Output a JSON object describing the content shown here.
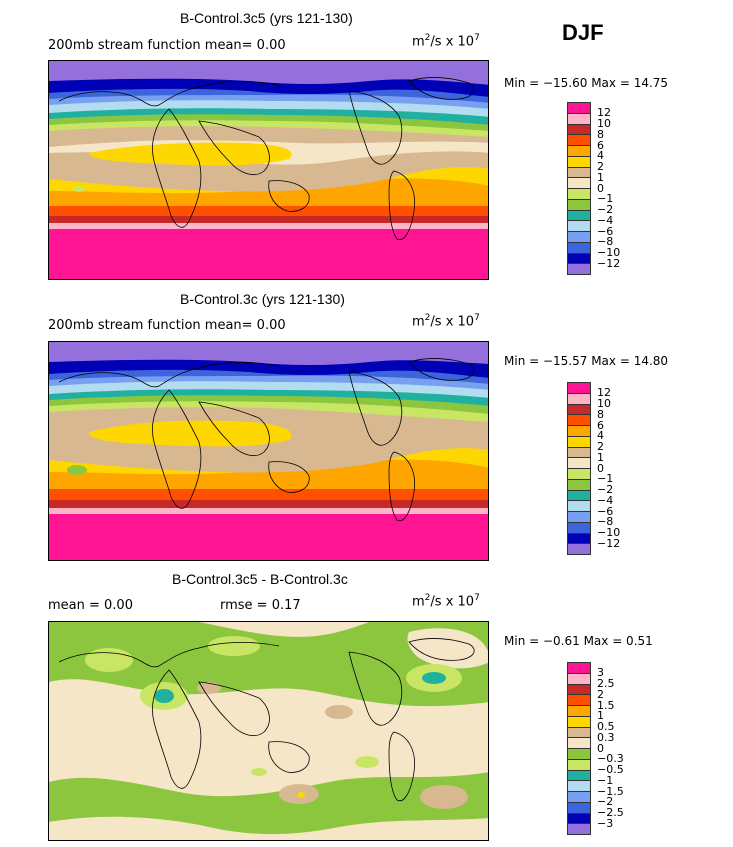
{
  "season": "DJF",
  "colors": {
    "purple": "#9370DB",
    "navy": "#0000B4",
    "blue": "#3C64DC",
    "sky": "#78A0F0",
    "lightblue": "#B4DCF0",
    "teal": "#20B0A0",
    "green": "#8CC63E",
    "lightgreen": "#C8E664",
    "tan": "#D8B890",
    "cream": "#F5E6C8",
    "yellow": "#FFD700",
    "orange": "#FFA500",
    "red": "#FF5000",
    "darkred": "#C82828",
    "pink": "#FFB4C8",
    "magenta": "#FF1493"
  },
  "panels": [
    {
      "title": "B-Control.3c5 (yrs 121-130)",
      "left_label": "200mb  stream  function    mean=     0.00",
      "units": "m",
      "units_sup": "2",
      "units_tail": "/s x 10",
      "units_exp": "7",
      "minmax": "Min = −15.60  Max =   14.75",
      "levels": [
        "12",
        "10",
        "8",
        "6",
        "4",
        "2",
        "1",
        "0",
        "−1",
        "−2",
        "−4",
        "−6",
        "−8",
        "−10",
        "−12"
      ],
      "colorbar": [
        "magenta",
        "pink",
        "darkred",
        "red",
        "orange",
        "yellow",
        "tan",
        "cream",
        "lightgreen",
        "green",
        "teal",
        "lightblue",
        "sky",
        "blue",
        "navy",
        "purple"
      ]
    },
    {
      "title": "B-Control.3c (yrs 121-130)",
      "left_label": "200mb  stream  function    mean=     0.00",
      "units": "m",
      "units_sup": "2",
      "units_tail": "/s x 10",
      "units_exp": "7",
      "minmax": "Min = −15.57  Max =   14.80",
      "levels": [
        "12",
        "10",
        "8",
        "6",
        "4",
        "2",
        "1",
        "0",
        "−1",
        "−2",
        "−4",
        "−6",
        "−8",
        "−10",
        "−12"
      ],
      "colorbar": [
        "magenta",
        "pink",
        "darkred",
        "red",
        "orange",
        "yellow",
        "tan",
        "cream",
        "lightgreen",
        "green",
        "teal",
        "lightblue",
        "sky",
        "blue",
        "navy",
        "purple"
      ]
    },
    {
      "title": "B-Control.3c5 - B-Control.3c",
      "left_label": "mean =     0.00",
      "mid_label": "rmse =     0.17",
      "units": "m",
      "units_sup": "2",
      "units_tail": "/s x 10",
      "units_exp": "7",
      "minmax": "Min =  −0.61  Max =    0.51",
      "levels": [
        "3",
        "2.5",
        "2",
        "1.5",
        "1",
        "0.5",
        "0.3",
        "0",
        "−0.3",
        "−0.5",
        "−1",
        "−1.5",
        "−2",
        "−2.5",
        "−3"
      ],
      "colorbar": [
        "magenta",
        "pink",
        "darkred",
        "red",
        "orange",
        "yellow",
        "tan",
        "cream",
        "green",
        "lightgreen",
        "teal",
        "lightblue",
        "sky",
        "blue",
        "navy",
        "purple"
      ]
    }
  ]
}
